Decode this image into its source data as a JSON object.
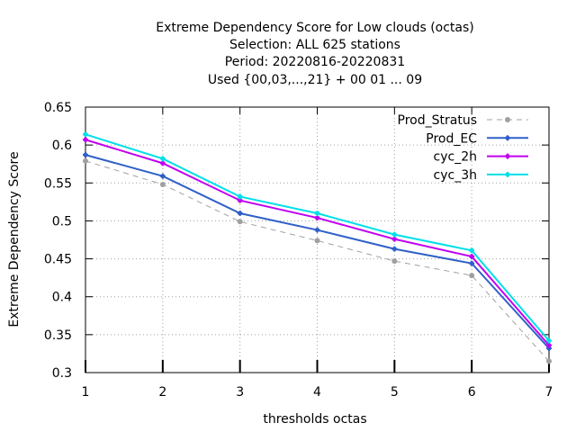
{
  "chart_data": {
    "type": "line",
    "title_lines": [
      "Extreme Dependency Score  for Low clouds (octas)",
      "Selection: ALL    625 stations",
      "Period: 20220816-20220831",
      "Used {00,03,...,21} + 00 01 ... 09"
    ],
    "xlabel": "thresholds octas",
    "ylabel": "Extreme Dependency Score",
    "x": [
      1,
      2,
      3,
      4,
      5,
      6,
      7
    ],
    "xlim": [
      1,
      7
    ],
    "ylim": [
      0.3,
      0.65
    ],
    "x_ticks": [
      "1",
      "2",
      "3",
      "4",
      "5",
      "6",
      "7"
    ],
    "y_ticks": [
      "0.3",
      "0.35",
      "0.4",
      "0.45",
      "0.5",
      "0.55",
      "0.6",
      "0.65"
    ],
    "grid": true,
    "legend_position": "top-right",
    "series": [
      {
        "name": "Prod_Stratus",
        "color": "#a0a0a0",
        "dashed": true,
        "marker": "circle",
        "values": [
          0.579,
          0.548,
          0.499,
          0.474,
          0.447,
          0.428,
          0.315
        ]
      },
      {
        "name": "Prod_EC",
        "color": "#3060c8",
        "dashed": false,
        "marker": "cross",
        "values": [
          0.587,
          0.559,
          0.51,
          0.488,
          0.463,
          0.444,
          0.332
        ]
      },
      {
        "name": "cyc_2h",
        "color": "#c000f0",
        "dashed": false,
        "marker": "cross",
        "values": [
          0.607,
          0.576,
          0.527,
          0.504,
          0.476,
          0.453,
          0.336
        ]
      },
      {
        "name": "cyc_3h",
        "color": "#00e0e8",
        "dashed": false,
        "marker": "cross",
        "values": [
          0.614,
          0.582,
          0.532,
          0.51,
          0.482,
          0.461,
          0.342
        ]
      }
    ]
  }
}
